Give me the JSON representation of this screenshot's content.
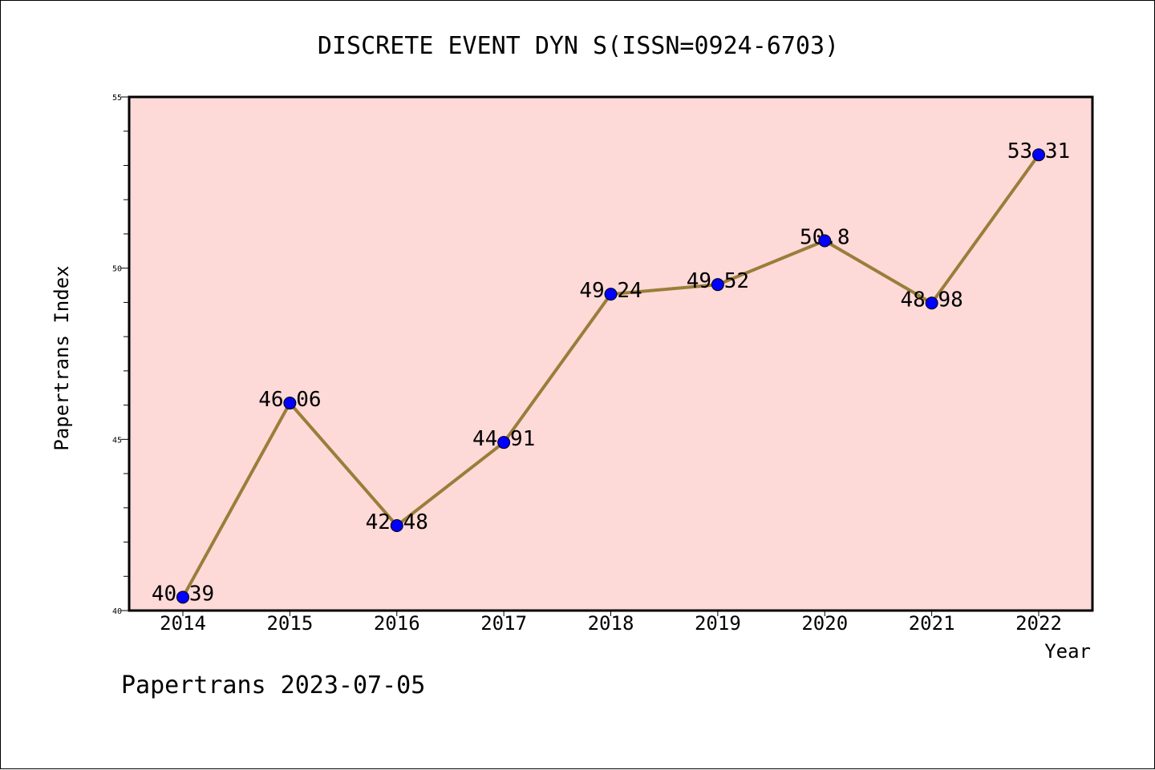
{
  "chart_data": {
    "type": "line",
    "title": "DISCRETE EVENT DYN S(ISSN=0924-6703)",
    "xlabel": "Year",
    "ylabel": "Papertrans Index",
    "categories": [
      "2014",
      "2015",
      "2016",
      "2017",
      "2018",
      "2019",
      "2020",
      "2021",
      "2022"
    ],
    "values": [
      40.39,
      46.06,
      42.48,
      44.91,
      49.24,
      49.52,
      50.8,
      48.98,
      53.31
    ],
    "data_labels": [
      "40.39",
      "46.06",
      "42.48",
      "44.91",
      "49.24",
      "49.52",
      "50.8",
      "48.98",
      "53.31"
    ],
    "ylim": [
      40,
      55
    ],
    "yticks": [
      "40",
      "45",
      "50",
      "55"
    ],
    "grid": false,
    "line_color": "#9a7d3a",
    "marker_color": "#0000ff",
    "plot_background": "#fdd9d7",
    "footer": "Papertrans 2023-07-05"
  }
}
